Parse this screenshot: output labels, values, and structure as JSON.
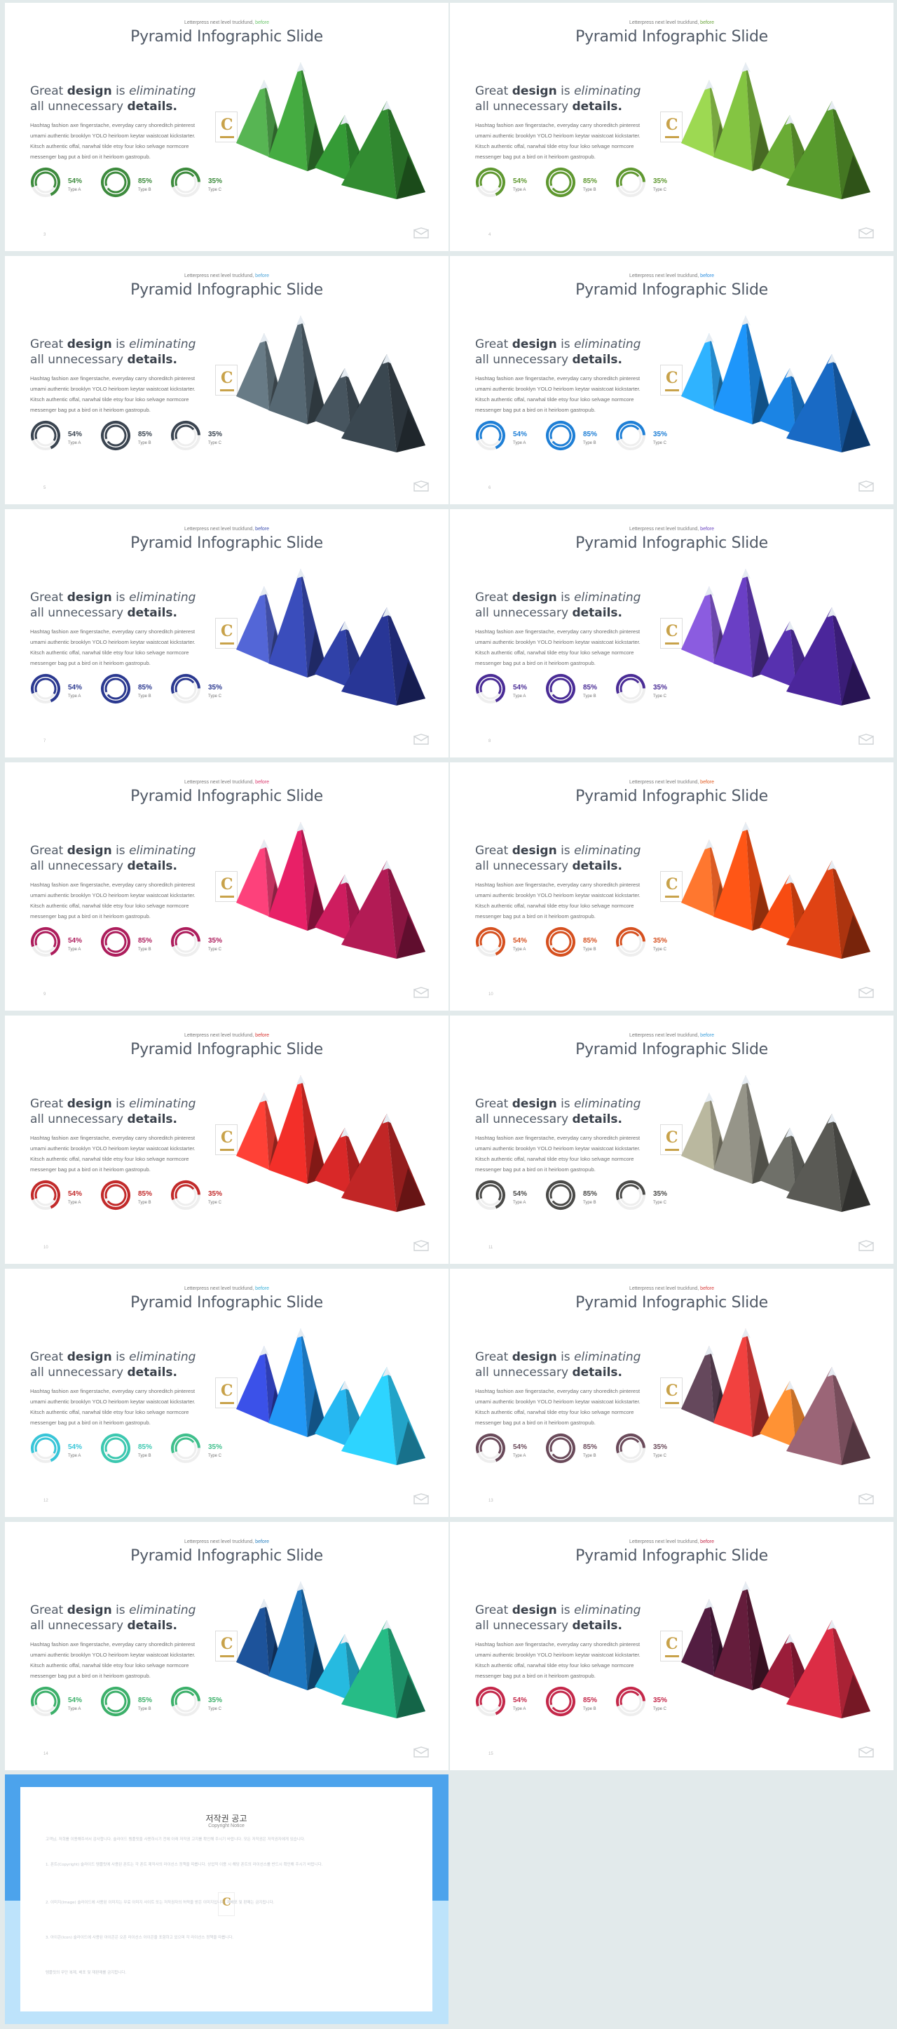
{
  "slide_common": {
    "subtitle_prefix": "Letterpress next level truckfund,",
    "subtitle_accent": "before",
    "title": "Pyramid Infographic Slide",
    "headline": {
      "t1": "Great ",
      "b1": "design",
      "t2": " is ",
      "i1": "eliminating",
      "t3": " all unnecessary ",
      "b2": "details."
    },
    "body": "Hashtag fashion axe fingerstache, everyday carry shoreditch pinterest umami authentic brooklyn YOLO heirloom keytar waistcoat kickstarter. Kitsch authentic offal, narwhal tilde etsy four loko selvage normcore messenger bag put a bird on it heirloom gastropub.",
    "stats": [
      {
        "value": "54%",
        "label": "Type A",
        "level": 0.54
      },
      {
        "value": "85%",
        "label": "Type B",
        "level": 0.85
      },
      {
        "value": "35%",
        "label": "Type C",
        "level": 0.35
      }
    ],
    "badge_letter": "C"
  },
  "slides": [
    {
      "page": "3",
      "accent": "#3a7d34",
      "ring": "#3d8b3d",
      "m": [
        "#4ea24a",
        "#3e9a3a",
        "#2f8a30",
        "#2d7d2c"
      ],
      "sub": "#6ac46a"
    },
    {
      "page": "4",
      "accent": "#6e9e2e",
      "ring": "#5f9830",
      "m": [
        "#8cc249",
        "#76b03b",
        "#5f9a2f",
        "#4f8a28"
      ],
      "sub": "#6aa53a"
    },
    {
      "page": "5",
      "accent": "#3c4650",
      "ring": "#3a4450",
      "m": [
        "#5d6e78",
        "#4d5d67",
        "#3f4c55",
        "#343f47"
      ],
      "sub": "#4aa3d8"
    },
    {
      "page": "6",
      "accent": "#1a7ad4",
      "ring": "#1e7fd6",
      "m": [
        "#2aa0ee",
        "#1b86e0",
        "#1876cc",
        "#165fb0"
      ],
      "sub": "#2a8ee0"
    },
    {
      "page": "7",
      "accent": "#2d3b94",
      "ring": "#2b3990",
      "m": [
        "#4a5bc0",
        "#3445a8",
        "#2b3a96",
        "#243086"
      ],
      "sub": "#3d4fb0"
    },
    {
      "page": "8",
      "accent": "#4a2c9a",
      "ring": "#4a2c96",
      "m": [
        "#7c52c8",
        "#5f38b0",
        "#4e2c9c",
        "#43228a"
      ],
      "sub": "#6b44c0"
    },
    {
      "page": "9",
      "accent": "#b01c5a",
      "ring": "#ad1d5c",
      "m": [
        "#e23a6e",
        "#cf1d5c",
        "#b81a55",
        "#a0184c"
      ],
      "sub": "#d8366a"
    },
    {
      "page": "10",
      "accent": "#d84a1a",
      "ring": "#d6501f",
      "m": [
        "#ff6a2a",
        "#f04d14",
        "#dd4410",
        "#c83c12"
      ],
      "sub": "#e05a1e"
    },
    {
      "page": "10",
      "accent": "#c4282a",
      "ring": "#c22a2a",
      "m": [
        "#ea3a30",
        "#d92a25",
        "#c22424",
        "#ac2222"
      ],
      "sub": "#d83430"
    },
    {
      "page": "11",
      "accent": "#444444",
      "ring": "#4a4a48",
      "m": [
        "#a6a48e",
        "#86857a",
        "#63645e",
        "#50504c"
      ],
      "sub": "#3da0dc"
    },
    {
      "page": "12",
      "accent": "#2ab0a0",
      "ring": "#2fbfa6",
      "m": [
        "#3548d0",
        "#1e88dc",
        "#22a4d8",
        "#28bde8"
      ],
      "sub": "#3ab0d8",
      "ring2": [
        "#38c5d8",
        "#3cc8b0",
        "#3fbf8c"
      ]
    },
    {
      "page": "13",
      "accent": "#5a3a4a",
      "ring": "#6a4a5a",
      "m": [
        "#5a4052",
        "#d83a38",
        "#e8822e",
        "#8a5a6a"
      ],
      "sub": "#d83a38"
    },
    {
      "page": "14",
      "accent": "#1a5a8c",
      "ring": "#3cb06a",
      "m": [
        "#1a4a8a",
        "#1a6aac",
        "#22a6c8",
        "#22a878"
      ],
      "sub": "#2a80c0"
    },
    {
      "page": "15",
      "accent": "#7a1a3a",
      "ring": "#c4284a",
      "m": [
        "#4a1a3a",
        "#5a1a36",
        "#8a1a34",
        "#c4283e"
      ],
      "sub": "#c42848"
    }
  ],
  "copyright": {
    "title": "저작권 공고",
    "subtitle": "Copyright Notice",
    "paragraphs": [
      "고객님, 저희를 이용해주셔서 감사합니다. 슬라이드 템플릿을 사용하시기 전에 아래 저작권 고지를 확인해 주시기 바랍니다. 모든 저작권은 저작권자에게 있습니다.",
      "1. 폰트(Copyright) 슬라이드 템플릿에 사용된 폰트는 각 폰트 제작사의 라이선스 정책을 따릅니다. 상업적 이용 시 해당 폰트의 라이선스를 반드시 확인해 주시기 바랍니다.",
      "2. 이미지(Image) 슬라이드에 사용된 이미지는 무료 이미지 사이트 또는 저작권자의 허락을 받은 이미지입니다. 재배포 및 판매는 금지됩니다.",
      "3. 아이콘(Icon) 슬라이드에 사용된 아이콘은 오픈 라이선스 아이콘을 포함하고 있으며 각 라이선스 정책을 따릅니다.",
      "템플릿의 무단 복제, 배포 및 재판매를 금지합니다."
    ]
  }
}
